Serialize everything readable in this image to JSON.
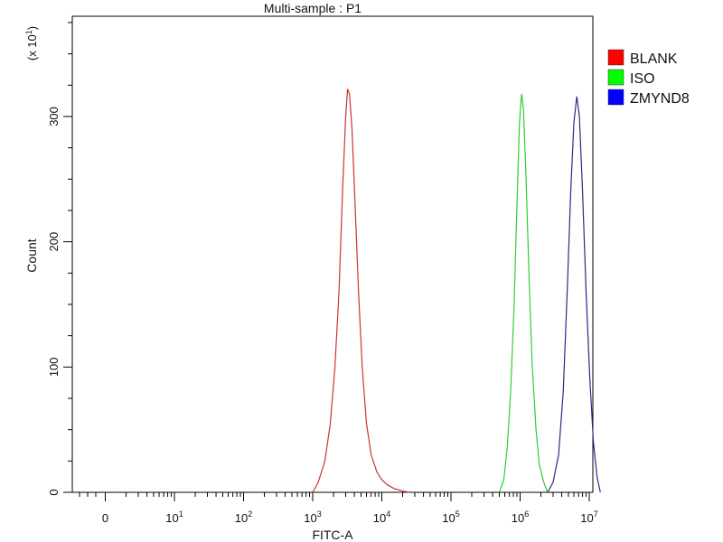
{
  "chart_data": {
    "type": "line",
    "title": "Multi-sample : P1",
    "xlabel": "FITC-A",
    "ylabel": "Count",
    "y_multiplier_label": "(x 10",
    "y_multiplier_exp": "1",
    "y_multiplier_close": ")",
    "x_scale": "log",
    "xlim": [
      -1,
      17000000
    ],
    "ylim": [
      0,
      380
    ],
    "x_ticks": [
      {
        "value": 0,
        "base": "0",
        "exp": ""
      },
      {
        "value": 10,
        "base": "10",
        "exp": "1"
      },
      {
        "value": 100,
        "base": "10",
        "exp": "2"
      },
      {
        "value": 1000,
        "base": "10",
        "exp": "3"
      },
      {
        "value": 10000,
        "base": "10",
        "exp": "4"
      },
      {
        "value": 100000,
        "base": "10",
        "exp": "5"
      },
      {
        "value": 1000000,
        "base": "10",
        "exp": "6"
      },
      {
        "value": 10000000,
        "base": "10",
        "exp": "7"
      }
    ],
    "y_ticks": [
      {
        "value": 0,
        "label": "0"
      },
      {
        "value": 100,
        "label": "100"
      },
      {
        "value": 200,
        "label": "200"
      },
      {
        "value": 300,
        "label": "300"
      }
    ],
    "grid": false,
    "legend_position": "right",
    "series": [
      {
        "name": "BLANK",
        "color": "#cc3333",
        "legend_color": "#ff0000",
        "points": [
          [
            1000,
            0
          ],
          [
            1200,
            8
          ],
          [
            1500,
            25
          ],
          [
            1800,
            55
          ],
          [
            2100,
            100
          ],
          [
            2400,
            160
          ],
          [
            2700,
            240
          ],
          [
            3000,
            300
          ],
          [
            3200,
            322
          ],
          [
            3400,
            318
          ],
          [
            3700,
            290
          ],
          [
            4100,
            230
          ],
          [
            4600,
            160
          ],
          [
            5200,
            100
          ],
          [
            6000,
            55
          ],
          [
            7000,
            30
          ],
          [
            8500,
            16
          ],
          [
            10000,
            10
          ],
          [
            12000,
            6
          ],
          [
            15000,
            3
          ],
          [
            20000,
            1
          ],
          [
            25000,
            0
          ]
        ]
      },
      {
        "name": "ISO",
        "color": "#33cc33",
        "legend_color": "#00ff00",
        "points": [
          [
            500000,
            0
          ],
          [
            580000,
            10
          ],
          [
            650000,
            35
          ],
          [
            730000,
            80
          ],
          [
            820000,
            150
          ],
          [
            900000,
            230
          ],
          [
            980000,
            295
          ],
          [
            1050000,
            318
          ],
          [
            1120000,
            305
          ],
          [
            1220000,
            250
          ],
          [
            1350000,
            170
          ],
          [
            1500000,
            100
          ],
          [
            1700000,
            50
          ],
          [
            1900000,
            22
          ],
          [
            2200000,
            8
          ],
          [
            2500000,
            0
          ]
        ]
      },
      {
        "name": "ZMYND8",
        "color": "#2a2a8a",
        "legend_color": "#0000ff",
        "points": [
          [
            2500000,
            0
          ],
          [
            3000000,
            8
          ],
          [
            3600000,
            30
          ],
          [
            4200000,
            80
          ],
          [
            4800000,
            160
          ],
          [
            5400000,
            240
          ],
          [
            6000000,
            295
          ],
          [
            6600000,
            316
          ],
          [
            7200000,
            300
          ],
          [
            8000000,
            240
          ],
          [
            9000000,
            160
          ],
          [
            10200000,
            90
          ],
          [
            11500000,
            40
          ],
          [
            13000000,
            12
          ],
          [
            14500000,
            0
          ]
        ]
      }
    ]
  }
}
